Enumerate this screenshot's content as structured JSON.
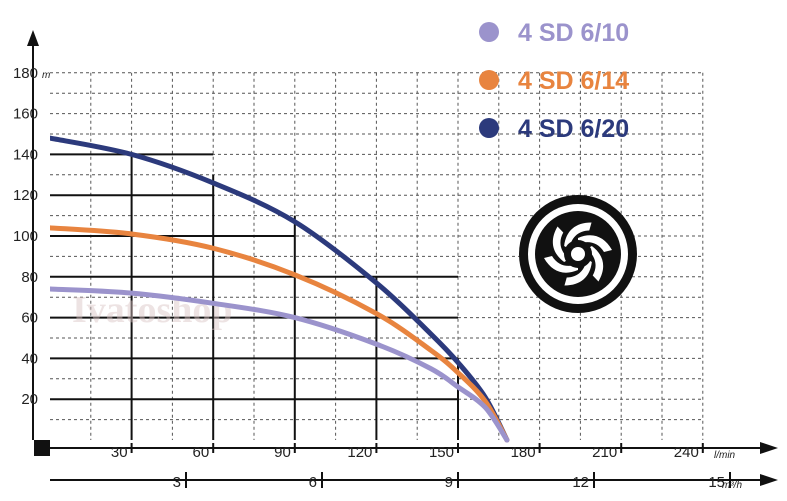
{
  "chart_data": {
    "type": "line",
    "title": "",
    "y_unit": "m",
    "x_unit": "l/min",
    "x2_unit": "m³/h",
    "ylim": [
      0,
      180
    ],
    "xlim": [
      0,
      240
    ],
    "y_ticks": [
      "20",
      "40",
      "60",
      "80",
      "100",
      "120",
      "140",
      "160",
      "180"
    ],
    "x_ticks": [
      "30",
      "60",
      "90",
      "120",
      "150",
      "180",
      "210",
      "240"
    ],
    "x2_ticks": [
      "3",
      "6",
      "9",
      "12",
      "15"
    ],
    "grid": true,
    "legend_position": "top-right",
    "series": [
      {
        "name": "4 SD 6/10",
        "color": "#9b93cc",
        "x": [
          0,
          30,
          60,
          90,
          120,
          140,
          150,
          160,
          168
        ],
        "y": [
          74,
          72,
          67,
          60,
          47,
          35,
          26,
          16,
          0
        ]
      },
      {
        "name": "4 SD 6/14",
        "color": "#e8843f",
        "x": [
          0,
          30,
          60,
          90,
          120,
          140,
          150,
          160,
          168
        ],
        "y": [
          104,
          101,
          94,
          81,
          62,
          44,
          33,
          19,
          0
        ]
      },
      {
        "name": "4 SD 6/20",
        "color": "#2c3a7c",
        "x": [
          0,
          30,
          60,
          90,
          120,
          140,
          150,
          160,
          168
        ],
        "y": [
          148,
          140,
          126,
          107,
          77,
          52,
          38,
          21,
          0
        ]
      }
    ]
  },
  "watermark": "Ivatoshop",
  "logo_icon": "impeller-icon"
}
